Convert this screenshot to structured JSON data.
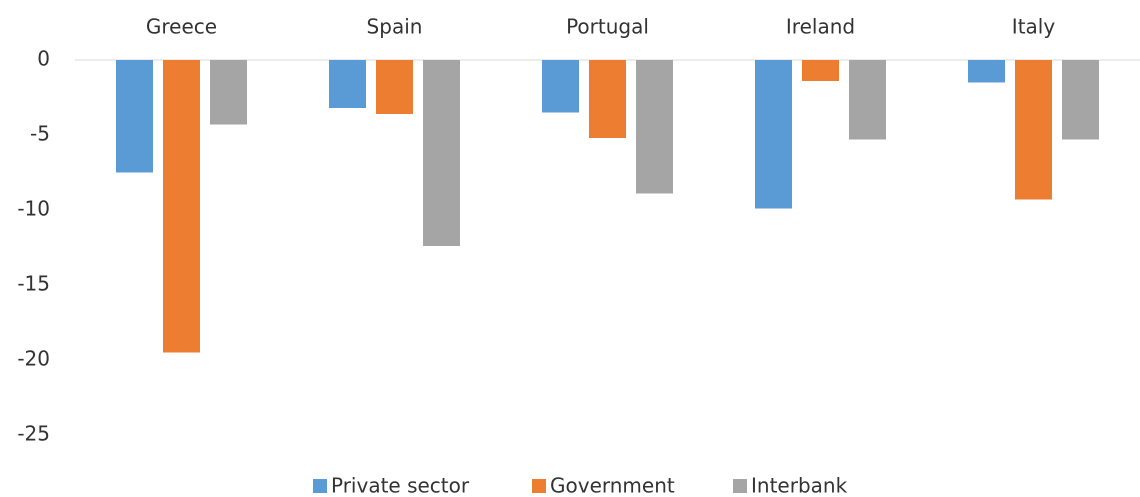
{
  "chart_data": {
    "type": "bar",
    "categories": [
      "Greece",
      "Spain",
      "Portugal",
      "Ireland",
      "Italy"
    ],
    "series": [
      {
        "name": "Private sector",
        "color": "#5b9bd5",
        "values": [
          -7.5,
          -3.2,
          -3.5,
          -9.9,
          -1.5
        ]
      },
      {
        "name": "Government",
        "color": "#ed7d31",
        "values": [
          -19.5,
          -3.6,
          -5.2,
          -1.4,
          -9.3
        ]
      },
      {
        "name": "Interbank",
        "color": "#a5a5a5",
        "values": [
          -4.3,
          -12.4,
          -8.9,
          -5.3,
          -5.3
        ]
      }
    ],
    "ylim": [
      -25,
      0
    ],
    "yticks": [
      0,
      -5,
      -10,
      -15,
      -20,
      -25
    ],
    "grid": false,
    "legend": "bottom"
  }
}
